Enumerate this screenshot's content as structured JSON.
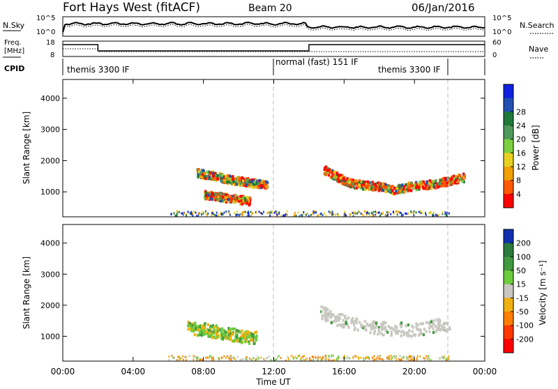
{
  "header": {
    "station": "Fort Hays West (fitACF)",
    "beam": "Beam 20",
    "date": "06/Jan/2016"
  },
  "status_panels": {
    "nsky": {
      "label": "N.Sky",
      "ticks": [
        "10^5",
        "10^0"
      ]
    },
    "nsearch": {
      "label": "N.Search",
      "ticks": [
        "10^5",
        "10^0"
      ]
    },
    "freq": {
      "label_line1": "Freq.",
      "label_line2": "[MHz]",
      "ticks": [
        "18",
        "8"
      ]
    },
    "nave": {
      "label": "Nave",
      "ticks": [
        "60",
        "0"
      ]
    },
    "cpid": {
      "label": "CPID",
      "segments": [
        "themis 3300 IF",
        "normal (fast) 151 IF",
        "themis 3300 IF"
      ]
    }
  },
  "chart_data": [
    {
      "type": "heatmap",
      "panel": "power",
      "ylabel": "Slant Range [km]",
      "ylim": [
        200,
        4600
      ],
      "yticks": [
        1000,
        2000,
        3000,
        4000
      ],
      "xlim": [
        0,
        24
      ],
      "colorbar": {
        "label": "Power [dB]",
        "ticks": [
          "4",
          "8",
          "12",
          "16",
          "20",
          "24",
          "28"
        ],
        "colors": [
          "#1020e0",
          "#2050b0",
          "#1f7a3a",
          "#4f9a5a",
          "#7cd040",
          "#e8d020",
          "#f0a000",
          "#ff5a00",
          "#ff0000"
        ]
      },
      "series": [
        {
          "x": [
            7.6,
            8.0,
            8.6,
            9.2,
            9.8,
            10.4,
            11.0,
            11.6
          ],
          "y": [
            1650,
            1600,
            1550,
            1450,
            1400,
            1350,
            1300,
            1250
          ]
        },
        {
          "x": [
            8.0,
            8.6,
            9.2,
            9.8,
            10.6
          ],
          "y": [
            950,
            900,
            850,
            800,
            750
          ]
        },
        {
          "x": [
            14.8,
            15.6,
            16.4,
            17.2,
            18.0,
            18.8,
            19.6,
            20.4,
            21.2,
            22.0,
            22.8
          ],
          "y": [
            1750,
            1500,
            1300,
            1250,
            1200,
            1100,
            1200,
            1250,
            1300,
            1400,
            1500
          ]
        }
      ]
    },
    {
      "type": "heatmap",
      "panel": "velocity",
      "ylabel": "Slant Range [km]",
      "ylim": [
        200,
        4600
      ],
      "yticks": [
        1000,
        2000,
        3000,
        4000
      ],
      "xlim": [
        0,
        24
      ],
      "xlabel": "Time UT",
      "xticks": [
        "00:00",
        "04:00",
        "08:00",
        "12:00",
        "16:00",
        "20:00",
        "00:00"
      ],
      "colorbar": {
        "label": "Velocity [m s⁻¹]",
        "ticks": [
          "200",
          "100",
          "50",
          "15",
          "-15",
          "-50",
          "-100",
          "-200"
        ],
        "colors": [
          "#1030b0",
          "#2c7a3c",
          "#3f9a40",
          "#6ccc3c",
          "#c8c8c0",
          "#f0b010",
          "#ff8000",
          "#ff3800",
          "#ff0000"
        ]
      },
      "series": [
        {
          "x": [
            7.0,
            8.0,
            9.0,
            10.0,
            11.0
          ],
          "y": [
            1350,
            1250,
            1150,
            1050,
            1000
          ]
        },
        {
          "x": [
            14.6,
            16.0,
            18.0,
            20.0,
            22.0
          ],
          "y": [
            1800,
            1500,
            1300,
            1250,
            1450
          ]
        }
      ]
    }
  ]
}
